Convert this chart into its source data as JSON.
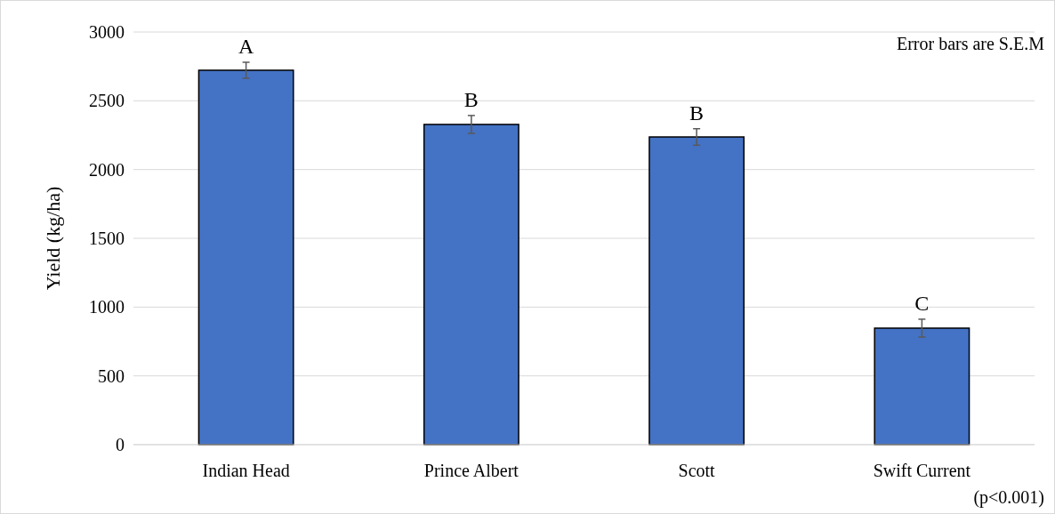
{
  "chart_data": {
    "type": "bar",
    "ylabel": "Yield (kg/ha)",
    "categories": [
      "Indian Head",
      "Prince Albert",
      "Scott",
      "Swift Current"
    ],
    "values": [
      2722,
      2328,
      2237,
      847
    ],
    "errors": [
      58,
      65,
      60,
      65
    ],
    "color": "#4472c4",
    "ylim": [
      0,
      3000
    ],
    "yticks": [
      0,
      500,
      1000,
      1500,
      2000,
      2500,
      3000
    ],
    "grid": "y",
    "annotations": [
      "A",
      "B",
      "B",
      "C",
      "Error bars are S.E.M",
      "(p<0.001)"
    ]
  }
}
